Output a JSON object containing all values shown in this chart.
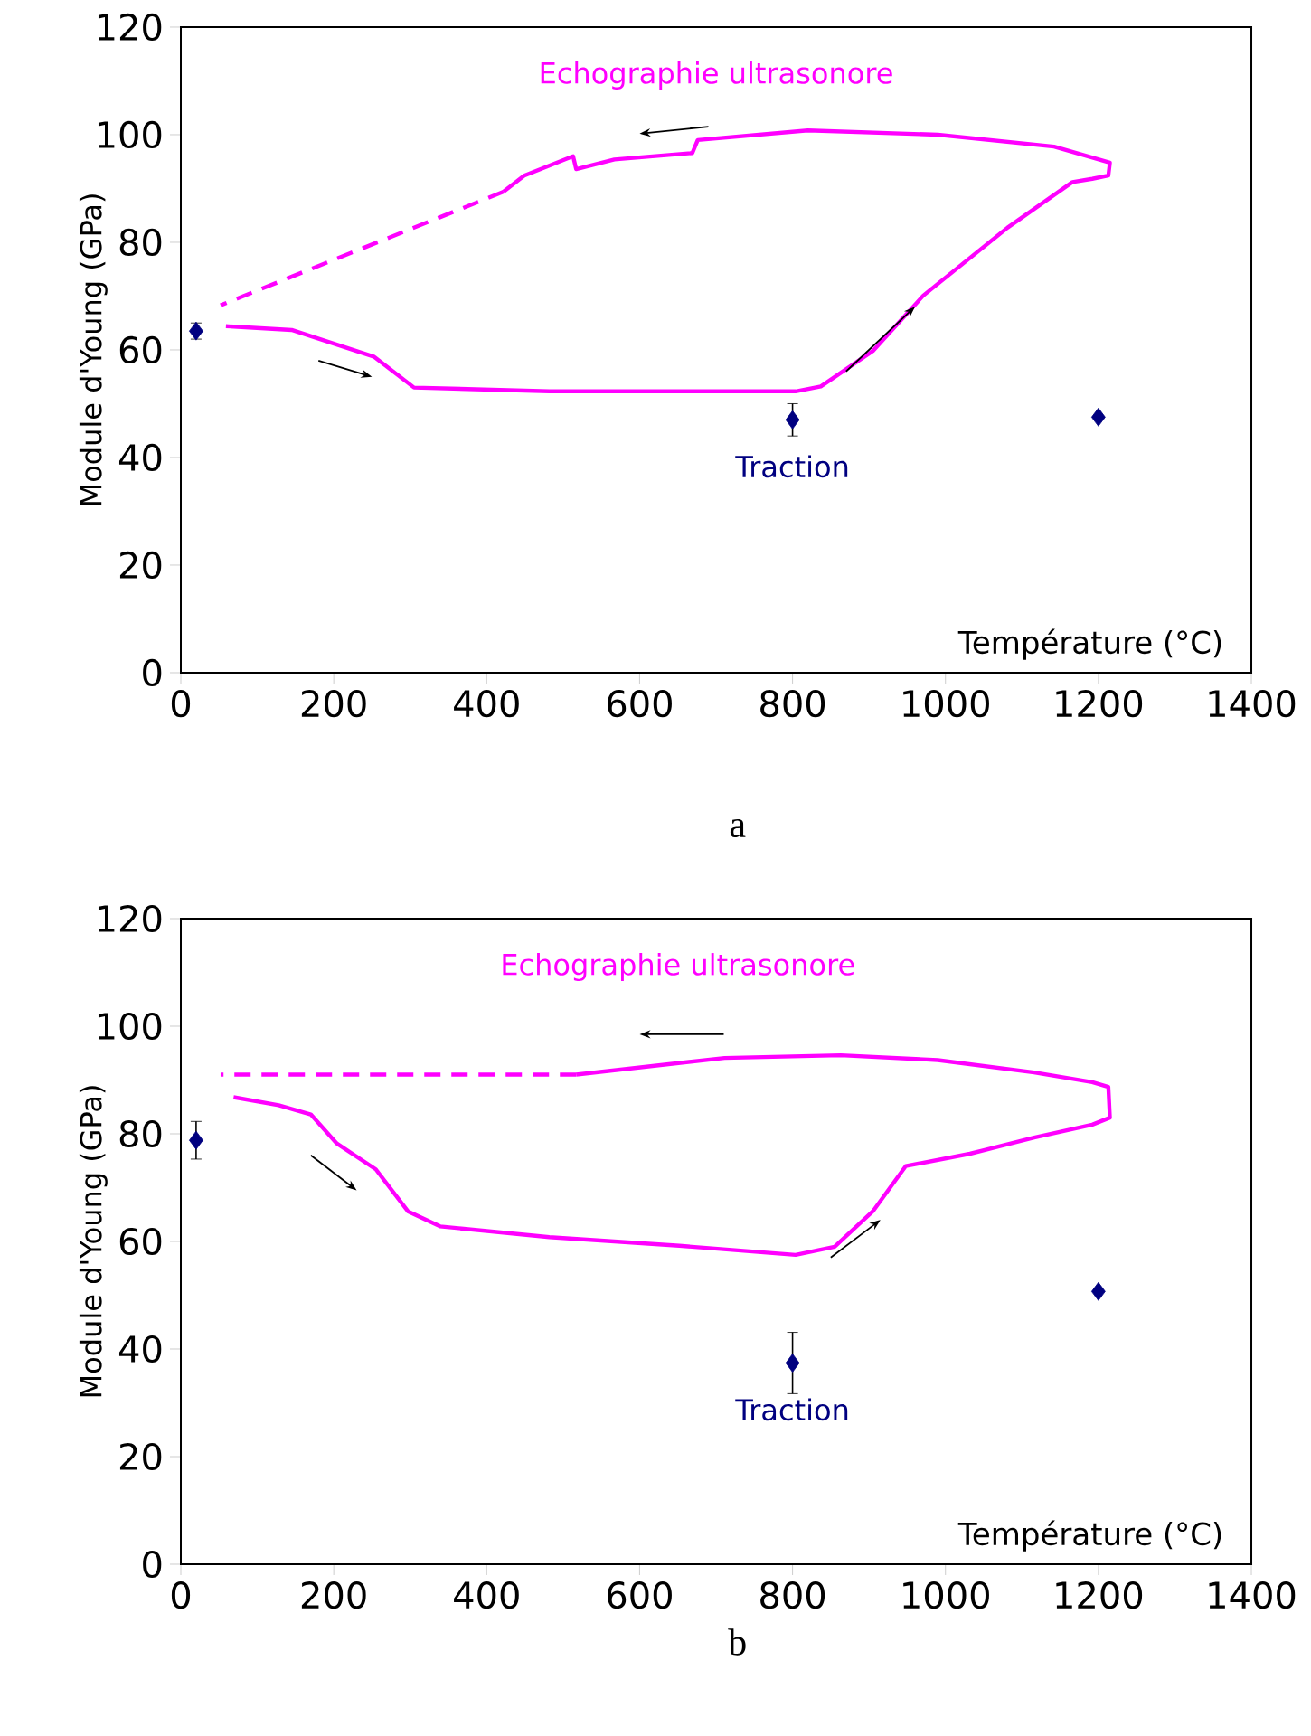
{
  "chart_data": [
    {
      "type": "line",
      "xlabel": "Température (°C)",
      "ylabel": "Module d'Young (GPa)",
      "xlim": [
        0,
        1400
      ],
      "ylim": [
        0,
        120
      ],
      "xticks": [
        0,
        200,
        400,
        600,
        800,
        1000,
        1200,
        1400
      ],
      "yticks": [
        0,
        20,
        40,
        60,
        80,
        100,
        120
      ],
      "annotations": [
        "Echographie ultrasonore",
        {
          "text": "Traction",
          "x": 800,
          "y": 47
        },
        "a"
      ],
      "series": [
        {
          "color": "#ff00ff",
          "line_style": "solid",
          "x": [
            59,
            145,
            253,
            305,
            482,
            804,
            837,
            905,
            971,
            1081,
            1166,
            1192,
            1213,
            1215,
            1142,
            990,
            820,
            676,
            669,
            567,
            517,
            513,
            449,
            422
          ],
          "values": [
            64.4,
            63.7,
            58.7,
            53,
            52.3,
            52.3,
            53.2,
            59.8,
            70.1,
            82.7,
            91.2,
            91.8,
            92.4,
            94.8,
            97.8,
            100,
            100.8,
            99,
            96.6,
            95.4,
            93.6,
            96,
            92.4,
            89.4
          ]
        },
        {
          "color": "#ff00ff",
          "line_style": "dashed",
          "x": [
            422,
            52
          ],
          "values": [
            89.4,
            68.3
          ]
        },
        {
          "type": "scatter",
          "color": "#000080",
          "marker": "diamond",
          "x": [
            20,
            800,
            1200
          ],
          "values": [
            63.5,
            47,
            47.5
          ],
          "errors": [
            1.5,
            3,
            null
          ]
        }
      ]
    },
    {
      "type": "line",
      "xlabel": "Température (°C)",
      "ylabel": "Module d'Young (GPa)",
      "xlim": [
        0,
        1400
      ],
      "ylim": [
        0,
        120
      ],
      "xticks": [
        0,
        200,
        400,
        600,
        800,
        1000,
        1200,
        1400
      ],
      "yticks": [
        0,
        20,
        40,
        60,
        80,
        100,
        120
      ],
      "annotations": [
        "Echographie ultrasonore",
        {
          "text": "Traction",
          "x": 800,
          "y": 37.4
        },
        "b"
      ],
      "series": [
        {
          "color": "#ff00ff",
          "line_style": "solid",
          "x": [
            69,
            128,
            170,
            204,
            255,
            297,
            339,
            482,
            652,
            804,
            855,
            905,
            948,
            1032,
            1116,
            1192,
            1215,
            1213,
            1192,
            1116,
            990,
            863,
            711,
            517
          ],
          "values": [
            86.8,
            85.3,
            83.6,
            78.2,
            73.4,
            65.6,
            62.8,
            60.8,
            59.2,
            57.5,
            59,
            65.6,
            74,
            76.3,
            79.3,
            81.7,
            83,
            88.7,
            89.6,
            91.4,
            93.7,
            94.6,
            94.1,
            91
          ]
        },
        {
          "color": "#ff00ff",
          "line_style": "dashed",
          "x": [
            517,
            52
          ],
          "values": [
            91,
            91
          ]
        },
        {
          "type": "scatter",
          "color": "#000080",
          "marker": "diamond",
          "x": [
            20,
            800,
            1200
          ],
          "values": [
            78.8,
            37.4,
            50.7
          ],
          "errors": [
            3.5,
            5.7,
            null
          ]
        }
      ]
    }
  ]
}
